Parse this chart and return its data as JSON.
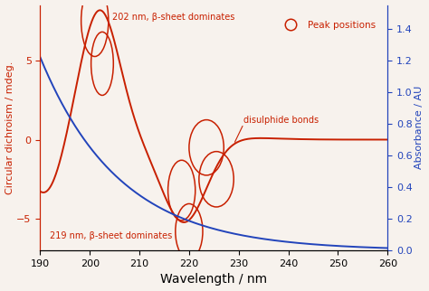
{
  "x_min": 190,
  "x_max": 260,
  "cd_ylim": [
    -7,
    8.5
  ],
  "abs_ylim": [
    0,
    1.55
  ],
  "cd_yticks": [
    -5,
    0,
    5
  ],
  "abs_yticks": [
    0.0,
    0.2,
    0.4,
    0.6,
    0.8,
    1.0,
    1.2,
    1.4
  ],
  "x_ticks": [
    190,
    200,
    210,
    220,
    230,
    240,
    250,
    260
  ],
  "xlabel": "Wavelength / nm",
  "ylabel_left": "Circular dichroism / mdeg.",
  "ylabel_right": "Absorbance / AU",
  "cd_color": "#c82000",
  "abs_color": "#2244bb",
  "annotation_color": "#c82000",
  "bg_color": "#f7f2ed",
  "legend_circle_label": "Peak positions"
}
